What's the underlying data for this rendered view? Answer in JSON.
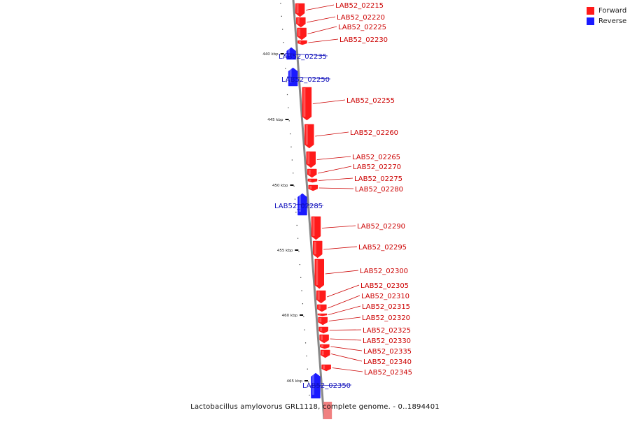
{
  "colors": {
    "forward": "#ff1a1a",
    "reverse": "#1a1aff",
    "axis": "#888888",
    "label_forward": "#cc0000",
    "label_reverse": "#1010bb"
  },
  "legend": {
    "forward": "Forward",
    "reverse": "Reverse"
  },
  "caption": "Lactobacillus amylovorus GRL1118, complete genome. - 0..1894401",
  "ticks": [
    {
      "label": "440 kbp"
    },
    {
      "label": "445 kbp"
    },
    {
      "label": "450 kbp"
    },
    {
      "label": "455 kbp"
    },
    {
      "label": "460 kbp"
    },
    {
      "label": "465 kbp"
    }
  ],
  "genes": [
    {
      "name": "LAB52_02215",
      "strand": "forward"
    },
    {
      "name": "LAB52_02220",
      "strand": "forward"
    },
    {
      "name": "LAB52_02225",
      "strand": "forward"
    },
    {
      "name": "LAB52_02230",
      "strand": "forward"
    },
    {
      "name": "LAB52_02235",
      "strand": "reverse"
    },
    {
      "name": "LAB52_02250",
      "strand": "reverse"
    },
    {
      "name": "LAB52_02255",
      "strand": "forward"
    },
    {
      "name": "LAB52_02260",
      "strand": "forward"
    },
    {
      "name": "LAB52_02265",
      "strand": "forward"
    },
    {
      "name": "LAB52_02270",
      "strand": "forward"
    },
    {
      "name": "LAB52_02275",
      "strand": "forward"
    },
    {
      "name": "LAB52_02280",
      "strand": "forward"
    },
    {
      "name": "LAB52_02285",
      "strand": "reverse"
    },
    {
      "name": "LAB52_02290",
      "strand": "forward"
    },
    {
      "name": "LAB52_02295",
      "strand": "forward"
    },
    {
      "name": "LAB52_02300",
      "strand": "forward"
    },
    {
      "name": "LAB52_02305",
      "strand": "forward"
    },
    {
      "name": "LAB52_02310",
      "strand": "forward"
    },
    {
      "name": "LAB52_02315",
      "strand": "forward"
    },
    {
      "name": "LAB52_02320",
      "strand": "forward"
    },
    {
      "name": "LAB52_02325",
      "strand": "forward"
    },
    {
      "name": "LAB52_02330",
      "strand": "forward"
    },
    {
      "name": "LAB52_02335",
      "strand": "forward"
    },
    {
      "name": "LAB52_02340",
      "strand": "forward"
    },
    {
      "name": "LAB52_02345",
      "strand": "forward"
    },
    {
      "name": "LAB52_02350",
      "strand": "reverse"
    }
  ]
}
